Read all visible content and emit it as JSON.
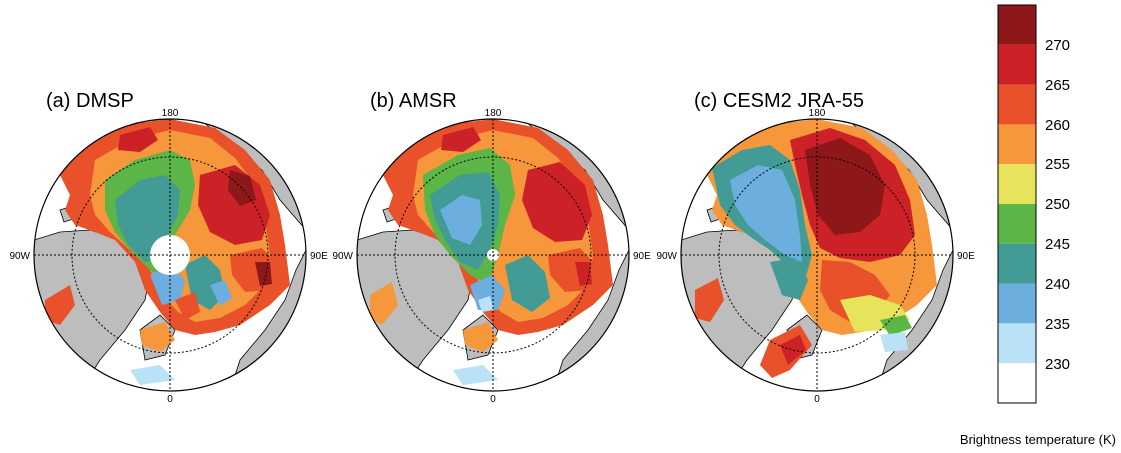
{
  "panels": [
    {
      "title": "(a) DMSP",
      "lon_labels": {
        "top": "180",
        "left": "90W",
        "right": "90E",
        "bottom": "0"
      }
    },
    {
      "title": "(b) AMSR",
      "lon_labels": {
        "top": "180",
        "left": "90W",
        "right": "90E",
        "bottom": "0"
      }
    },
    {
      "title": "(c) CESM2 JRA-55",
      "lon_labels": {
        "top": "180",
        "left": "90W",
        "right": "90E",
        "bottom": "0"
      }
    }
  ],
  "colorbar": {
    "title": "Brightness temperature (K)",
    "levels": [
      "270",
      "265",
      "260",
      "255",
      "250",
      "245",
      "240",
      "235",
      "230"
    ],
    "colors": [
      "#8e1719",
      "#cc2127",
      "#e9512a",
      "#f6973b",
      "#e7e35b",
      "#5cb547",
      "#429b94",
      "#6caedd",
      "#b9e2f7",
      "#ffffff"
    ]
  },
  "land_color": "#bdbdbd"
}
